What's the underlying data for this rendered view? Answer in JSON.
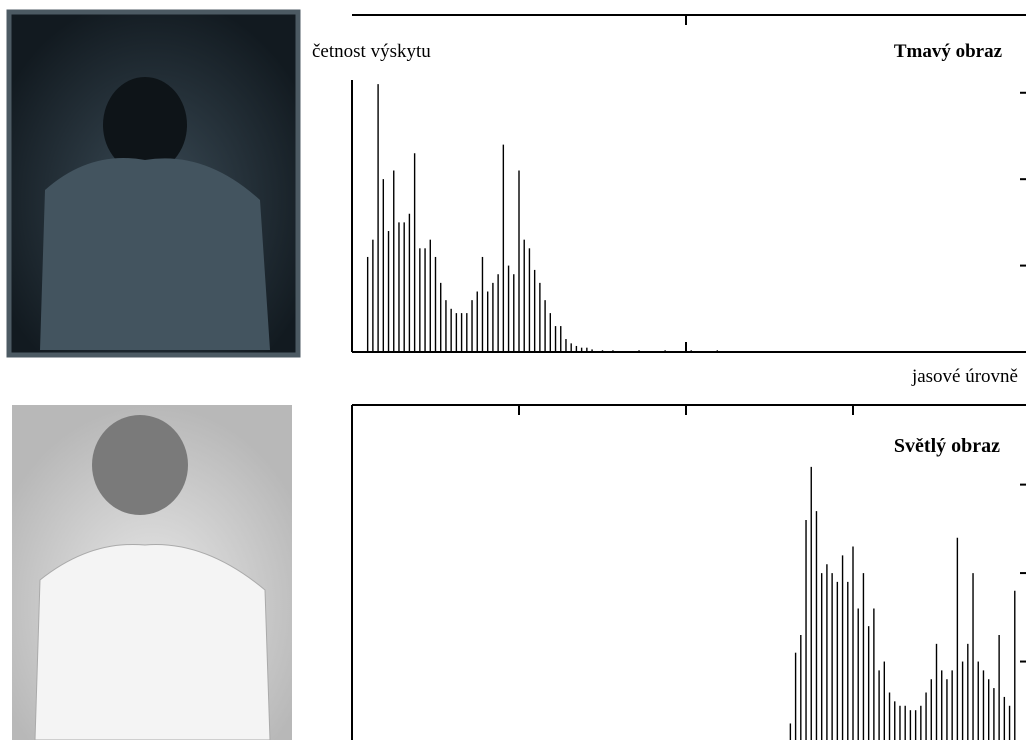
{
  "chart_data": [
    {
      "type": "bar",
      "title": "Tmavý obraz",
      "y_label": "četnost výskytu",
      "x_label": "jasové úrovně",
      "color": "#000000",
      "x": [
        6,
        8,
        10,
        12,
        14,
        16,
        18,
        20,
        22,
        24,
        26,
        28,
        30,
        32,
        34,
        36,
        38,
        40,
        42,
        44,
        46,
        48,
        50,
        52,
        54,
        56,
        58,
        60,
        62,
        64,
        66,
        68,
        70,
        72,
        74,
        76,
        78,
        80,
        82,
        84,
        86,
        88,
        90,
        92,
        96,
        100,
        110,
        120,
        130,
        140
      ],
      "values": [
        1.1,
        1.3,
        3.1,
        2.0,
        1.4,
        2.1,
        1.5,
        1.5,
        1.6,
        2.3,
        1.2,
        1.2,
        1.3,
        1.1,
        0.8,
        0.6,
        0.5,
        0.45,
        0.45,
        0.45,
        0.6,
        0.7,
        1.1,
        0.7,
        0.8,
        0.9,
        2.4,
        1.0,
        0.9,
        2.1,
        1.3,
        1.2,
        0.95,
        0.8,
        0.6,
        0.45,
        0.3,
        0.3,
        0.15,
        0.1,
        0.07,
        0.05,
        0.05,
        0.03,
        0.02,
        0.02,
        0.02,
        0.02,
        0.02,
        0.02
      ],
      "xlim": [
        0,
        256
      ],
      "xticks": [
        128
      ],
      "ylim": [
        0,
        3.9
      ],
      "yticks": [
        1,
        2,
        3
      ]
    },
    {
      "type": "bar",
      "title": "Světlý obraz",
      "color": "#000000",
      "x": [
        168,
        170,
        172,
        174,
        176,
        178,
        180,
        182,
        184,
        186,
        188,
        190,
        192,
        194,
        196,
        198,
        200,
        202,
        204,
        206,
        208,
        210,
        212,
        214,
        216,
        218,
        220,
        222,
        224,
        226,
        228,
        230,
        232,
        234,
        236,
        238,
        240,
        242,
        244,
        246,
        248,
        250,
        252,
        254
      ],
      "values": [
        0.3,
        1.1,
        1.3,
        2.6,
        3.2,
        2.7,
        2.0,
        2.1,
        2.0,
        1.9,
        2.2,
        1.9,
        2.3,
        1.6,
        2.0,
        1.4,
        1.6,
        0.9,
        1.0,
        0.65,
        0.55,
        0.5,
        0.5,
        0.45,
        0.45,
        0.5,
        0.65,
        0.8,
        1.2,
        0.9,
        0.8,
        0.9,
        2.4,
        1.0,
        1.2,
        2.0,
        1.0,
        0.9,
        0.8,
        0.7,
        1.3,
        0.6,
        0.5,
        1.8
      ],
      "xlim": [
        0,
        256
      ],
      "xticks": [
        64,
        128,
        192
      ],
      "ylim": [
        0,
        3.9
      ],
      "yticks": [
        1,
        2,
        3
      ]
    }
  ]
}
